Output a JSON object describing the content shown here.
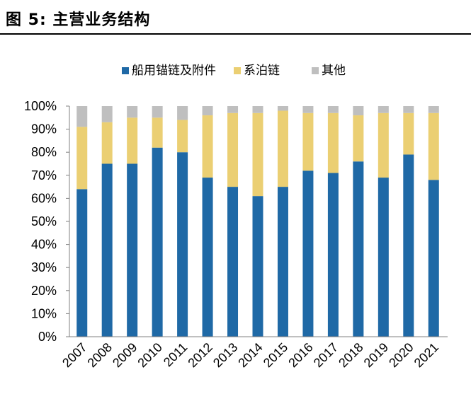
{
  "figure": {
    "title": "图 5:  主营业务结构"
  },
  "chart_data": {
    "type": "bar",
    "stacked": true,
    "percent": true,
    "title": "",
    "xlabel": "",
    "ylabel": "",
    "ylim": [
      0,
      100
    ],
    "yticks": [
      "0%",
      "10%",
      "20%",
      "30%",
      "40%",
      "50%",
      "60%",
      "70%",
      "80%",
      "90%",
      "100%"
    ],
    "categories": [
      "2007",
      "2008",
      "2009",
      "2010",
      "2011",
      "2012",
      "2013",
      "2014",
      "2015",
      "2016",
      "2017",
      "2018",
      "2019",
      "2020",
      "2021"
    ],
    "legend_position": "top",
    "grid": false,
    "series": [
      {
        "name": "船用锚链及附件",
        "color": "#1f69a6",
        "values": [
          64,
          75,
          75,
          82,
          80,
          69,
          65,
          61,
          65,
          72,
          71,
          76,
          69,
          79,
          68
        ]
      },
      {
        "name": "系泊链",
        "color": "#ebcf73",
        "values": [
          27,
          18,
          20,
          13,
          14,
          27,
          32,
          36,
          33,
          25,
          26,
          20,
          28,
          18,
          29
        ]
      },
      {
        "name": "其他",
        "color": "#bfbfbf",
        "values": [
          9,
          7,
          5,
          5,
          6,
          4,
          3,
          3,
          2,
          3,
          3,
          4,
          3,
          3,
          3
        ]
      }
    ]
  }
}
